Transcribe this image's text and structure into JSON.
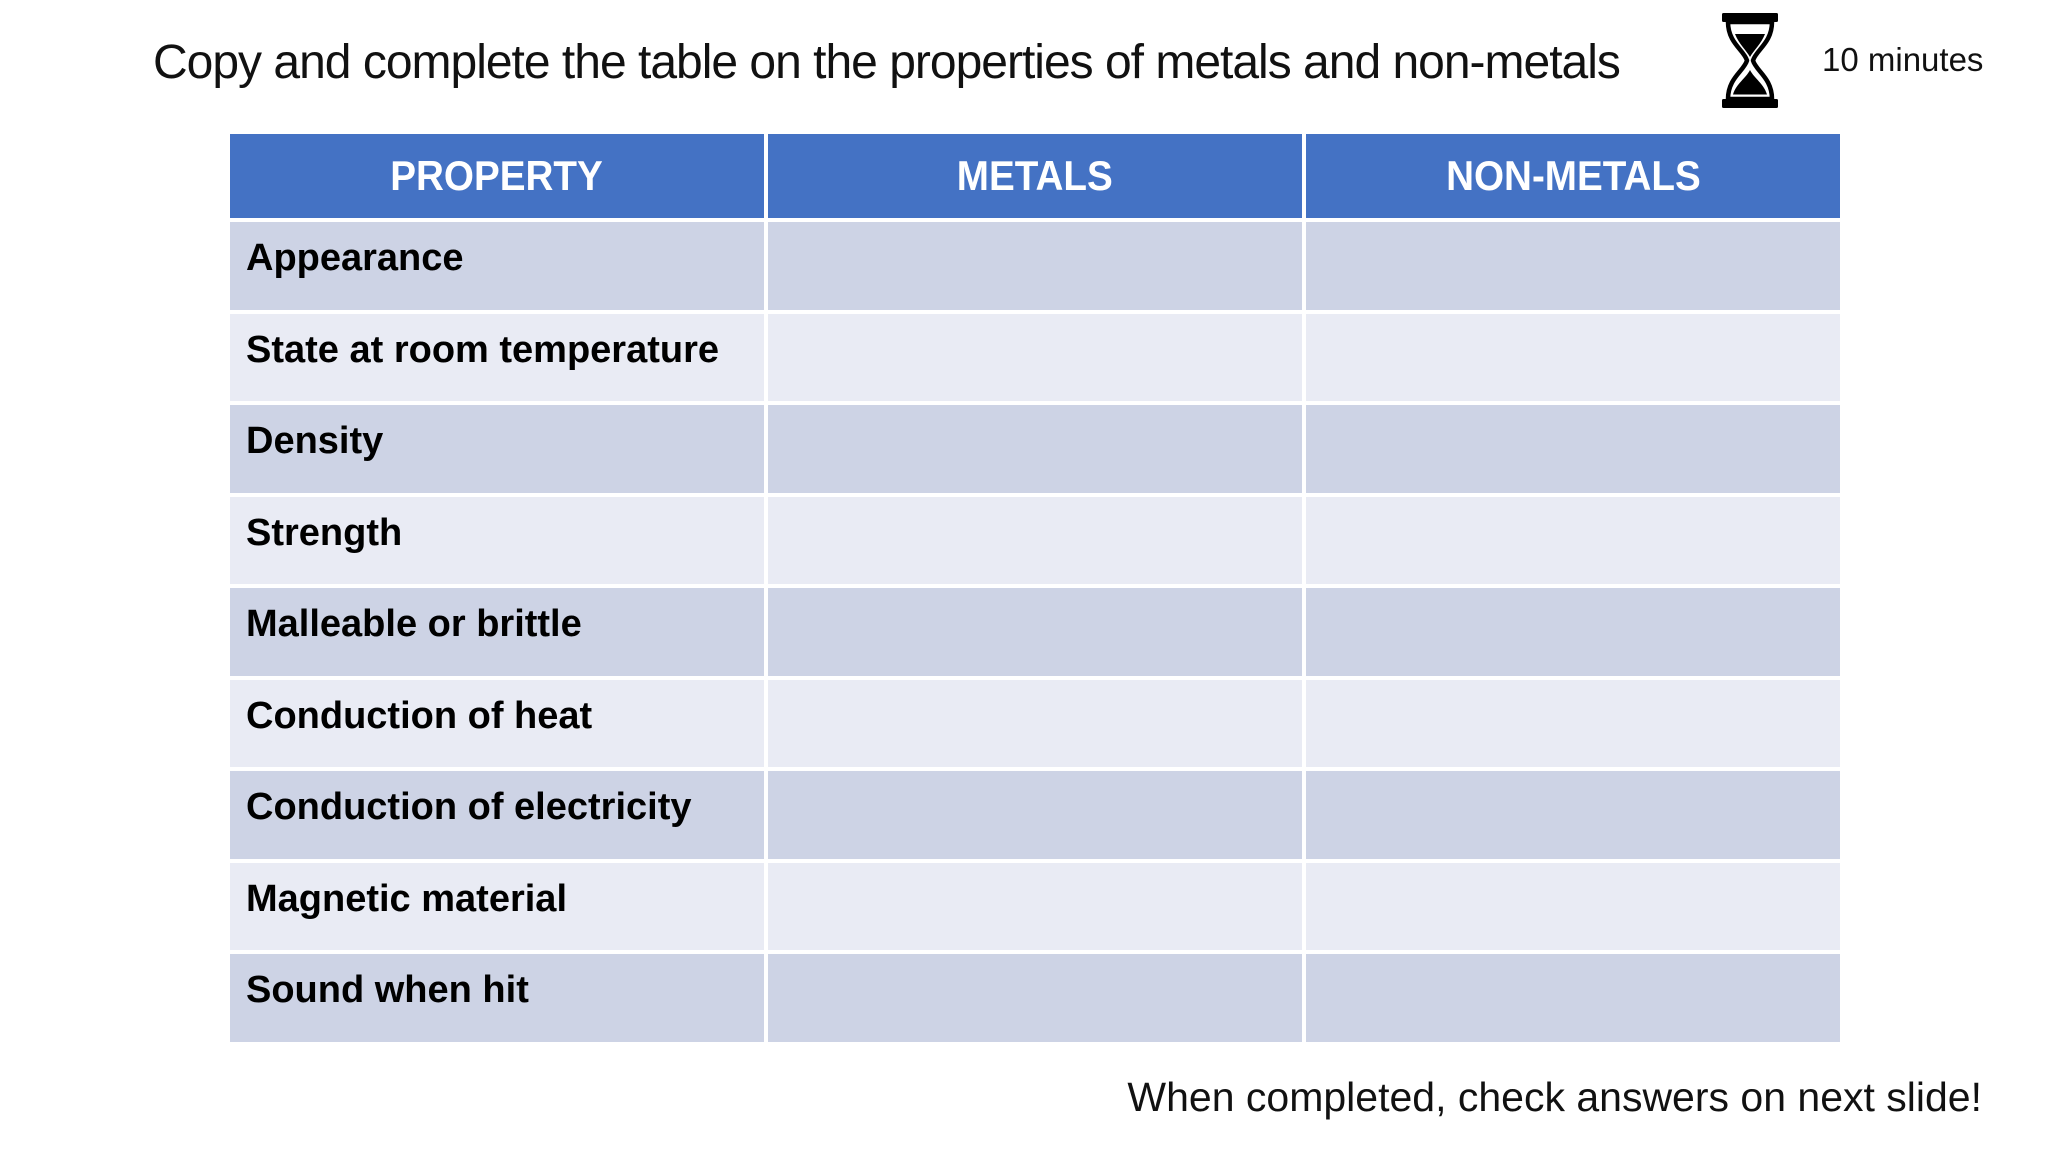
{
  "slide": {
    "title": "Copy and complete the table on the properties of metals and non-metals",
    "timer": {
      "icon": "hourglass-icon",
      "label": "10 minutes"
    },
    "table": {
      "headers": [
        "PROPERTY",
        "METALS",
        "NON-METALS"
      ],
      "rows": [
        {
          "property": "Appearance",
          "metals": "",
          "non_metals": ""
        },
        {
          "property": "State at room temperature",
          "metals": "",
          "non_metals": ""
        },
        {
          "property": "Density",
          "metals": "",
          "non_metals": ""
        },
        {
          "property": "Strength",
          "metals": "",
          "non_metals": ""
        },
        {
          "property": "Malleable or brittle",
          "metals": "",
          "non_metals": ""
        },
        {
          "property": "Conduction of heat",
          "metals": "",
          "non_metals": ""
        },
        {
          "property": "Conduction of electricity",
          "metals": "",
          "non_metals": ""
        },
        {
          "property": "Magnetic material",
          "metals": "",
          "non_metals": ""
        },
        {
          "property": "Sound when hit",
          "metals": "",
          "non_metals": ""
        }
      ],
      "colors": {
        "header_bg": "#4472C4",
        "header_text": "#FFFFFF",
        "band_dark": "#CDD3E5",
        "band_light": "#E9EBF4",
        "gridline": "#FFFFFF"
      }
    },
    "footer": "When completed, check answers on next slide!"
  }
}
